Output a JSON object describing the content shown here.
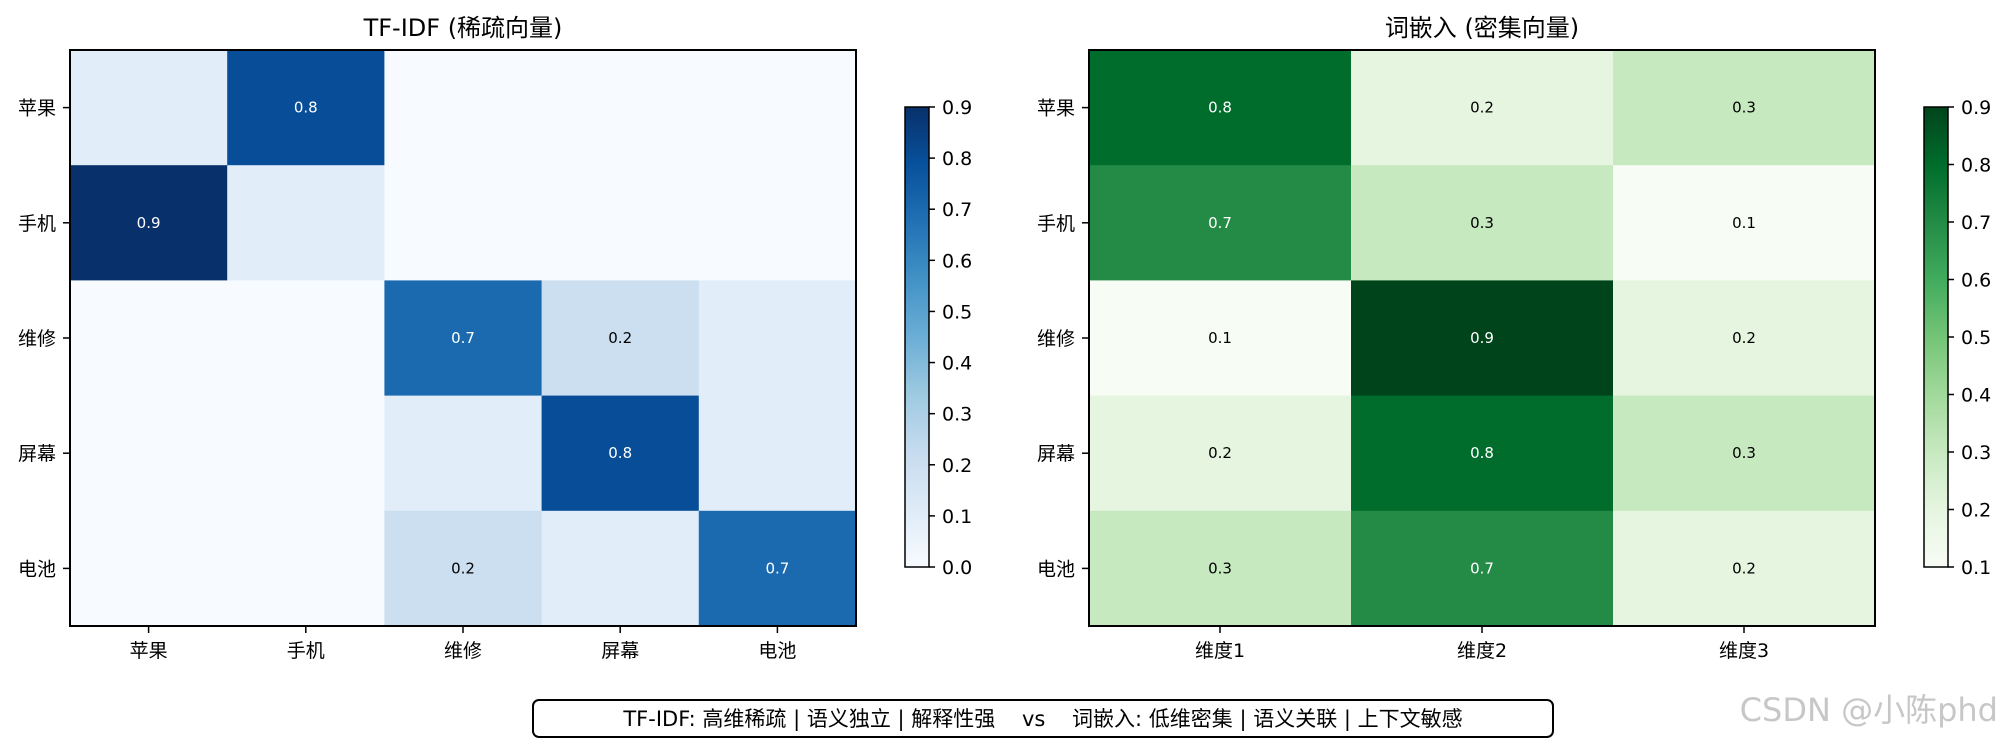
{
  "chart_data": [
    {
      "type": "heatmap",
      "title": "TF-IDF (稀疏向量)",
      "row_labels": [
        "苹果",
        "手机",
        "维修",
        "屏幕",
        "电池"
      ],
      "col_labels": [
        "苹果",
        "手机",
        "维修",
        "屏幕",
        "电池"
      ],
      "values": [
        [
          0.1,
          0.8,
          0.0,
          0.0,
          0.0
        ],
        [
          0.9,
          0.1,
          0.0,
          0.0,
          0.0
        ],
        [
          0.0,
          0.0,
          0.7,
          0.2,
          0.1
        ],
        [
          0.0,
          0.0,
          0.1,
          0.8,
          0.1
        ],
        [
          0.0,
          0.0,
          0.2,
          0.1,
          0.7
        ]
      ],
      "cell_labels": [
        [
          "",
          "0.8",
          "",
          "",
          ""
        ],
        [
          "0.9",
          "",
          "",
          "",
          ""
        ],
        [
          "",
          "",
          "0.7",
          "0.2",
          ""
        ],
        [
          "",
          "",
          "",
          "0.8",
          ""
        ],
        [
          "",
          "",
          "0.2",
          "",
          "0.7"
        ]
      ],
      "colormap": "Blues",
      "colors": {
        "low": "#f7fbff",
        "high": "#08306b"
      },
      "colorbar": {
        "min": 0.0,
        "max": 0.9,
        "ticks": [
          "0.0",
          "0.1",
          "0.2",
          "0.3",
          "0.4",
          "0.5",
          "0.6",
          "0.7",
          "0.8",
          "0.9"
        ]
      }
    },
    {
      "type": "heatmap",
      "title": "词嵌入 (密集向量)",
      "row_labels": [
        "苹果",
        "手机",
        "维修",
        "屏幕",
        "电池"
      ],
      "col_labels": [
        "维度1",
        "维度2",
        "维度3"
      ],
      "values": [
        [
          0.8,
          0.2,
          0.3
        ],
        [
          0.7,
          0.3,
          0.1
        ],
        [
          0.1,
          0.9,
          0.2
        ],
        [
          0.2,
          0.8,
          0.3
        ],
        [
          0.3,
          0.7,
          0.2
        ]
      ],
      "cell_labels": [
        [
          "0.8",
          "0.2",
          "0.3"
        ],
        [
          "0.7",
          "0.3",
          "0.1"
        ],
        [
          "0.1",
          "0.9",
          "0.2"
        ],
        [
          "0.2",
          "0.8",
          "0.3"
        ],
        [
          "0.3",
          "0.7",
          "0.2"
        ]
      ],
      "colormap": "Greens",
      "colors": {
        "low": "#f7fcf5",
        "high": "#00441b"
      },
      "colorbar": {
        "min": 0.1,
        "max": 0.9,
        "ticks": [
          "0.1",
          "0.2",
          "0.3",
          "0.4",
          "0.5",
          "0.6",
          "0.7",
          "0.8",
          "0.9"
        ]
      }
    }
  ],
  "footer": {
    "text": "TF-IDF: 高维稀疏 | 语义独立 | 解释性强    vs    词嵌入: 低维密集 | 语义关联 | 上下文敏感"
  },
  "watermark": {
    "text": "CSDN @小陈phd"
  }
}
